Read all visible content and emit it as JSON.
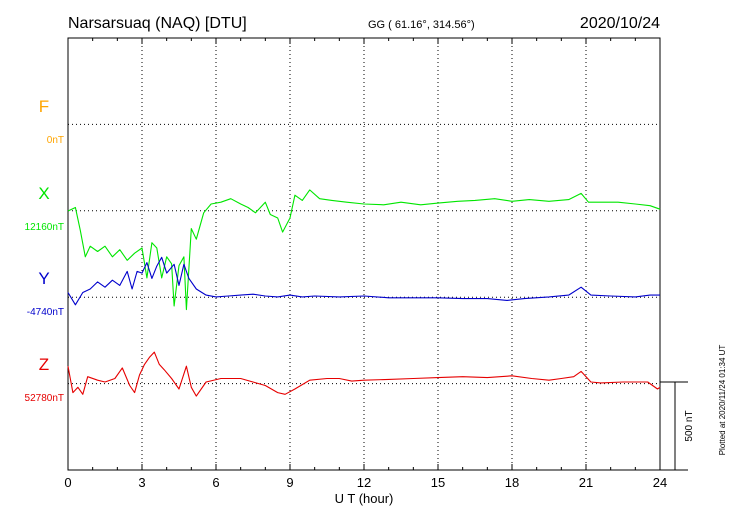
{
  "header": {
    "station": "Narsarsuaq (NAQ)  [DTU]",
    "coords": "GG ( 61.16°, 314.56°)",
    "date": "2020/10/24"
  },
  "side_note": "Plotted at 2020/11/24 01:34 UT",
  "scale_label": "500 nT",
  "colors": {
    "F": "#ffa500",
    "X": "#00e600",
    "Y": "#0000cc",
    "Z": "#e60000",
    "grid": "#000000"
  },
  "chart_data": {
    "type": "line",
    "xlabel": "U T (hour)",
    "xlim": [
      0,
      24
    ],
    "x_ticks": [
      "0",
      "3",
      "6",
      "9",
      "12",
      "15",
      "18",
      "21",
      "24"
    ],
    "panels": [
      {
        "key": "F",
        "name": "F",
        "baseline_label": "0nT",
        "baseline": 0,
        "unit": "nT",
        "values": []
      },
      {
        "key": "X",
        "name": "X",
        "baseline_label": "12160nT",
        "baseline": 12160,
        "unit": "nT",
        "points": [
          [
            0,
            12160
          ],
          [
            0.3,
            12180
          ],
          [
            0.5,
            12050
          ],
          [
            0.7,
            11900
          ],
          [
            0.9,
            11960
          ],
          [
            1.2,
            11930
          ],
          [
            1.5,
            11960
          ],
          [
            1.8,
            11900
          ],
          [
            2.1,
            11940
          ],
          [
            2.4,
            11880
          ],
          [
            2.7,
            11920
          ],
          [
            3.0,
            11950
          ],
          [
            3.2,
            11780
          ],
          [
            3.4,
            11980
          ],
          [
            3.6,
            11950
          ],
          [
            3.8,
            11780
          ],
          [
            4.0,
            11900
          ],
          [
            4.2,
            11860
          ],
          [
            4.3,
            11620
          ],
          [
            4.5,
            11850
          ],
          [
            4.7,
            11900
          ],
          [
            4.8,
            11600
          ],
          [
            5.0,
            12060
          ],
          [
            5.2,
            12000
          ],
          [
            5.5,
            12150
          ],
          [
            5.8,
            12200
          ],
          [
            6.2,
            12210
          ],
          [
            6.6,
            12230
          ],
          [
            7.0,
            12200
          ],
          [
            7.3,
            12180
          ],
          [
            7.6,
            12150
          ],
          [
            8.0,
            12210
          ],
          [
            8.2,
            12140
          ],
          [
            8.5,
            12120
          ],
          [
            8.7,
            12040
          ],
          [
            9.0,
            12120
          ],
          [
            9.2,
            12250
          ],
          [
            9.5,
            12220
          ],
          [
            9.8,
            12280
          ],
          [
            10.2,
            12230
          ],
          [
            10.7,
            12220
          ],
          [
            11.3,
            12210
          ],
          [
            12.0,
            12200
          ],
          [
            12.8,
            12195
          ],
          [
            13.5,
            12210
          ],
          [
            14.3,
            12195
          ],
          [
            15.0,
            12205
          ],
          [
            15.8,
            12215
          ],
          [
            16.5,
            12220
          ],
          [
            17.3,
            12230
          ],
          [
            18.0,
            12215
          ],
          [
            18.7,
            12225
          ],
          [
            19.5,
            12215
          ],
          [
            20.3,
            12225
          ],
          [
            20.8,
            12260
          ],
          [
            21.1,
            12210
          ],
          [
            21.5,
            12210
          ],
          [
            22.3,
            12210
          ],
          [
            23.0,
            12200
          ],
          [
            23.6,
            12190
          ],
          [
            24.0,
            12170
          ]
        ]
      },
      {
        "key": "Y",
        "name": "Y",
        "baseline_label": "-4740nT",
        "baseline": -4740,
        "unit": "nT",
        "points": [
          [
            0,
            -4720
          ],
          [
            0.3,
            -4790
          ],
          [
            0.6,
            -4720
          ],
          [
            0.9,
            -4700
          ],
          [
            1.2,
            -4660
          ],
          [
            1.5,
            -4690
          ],
          [
            1.8,
            -4650
          ],
          [
            2.1,
            -4680
          ],
          [
            2.4,
            -4600
          ],
          [
            2.6,
            -4700
          ],
          [
            2.8,
            -4600
          ],
          [
            3.0,
            -4610
          ],
          [
            3.2,
            -4550
          ],
          [
            3.4,
            -4640
          ],
          [
            3.6,
            -4570
          ],
          [
            3.8,
            -4520
          ],
          [
            4.0,
            -4610
          ],
          [
            4.3,
            -4560
          ],
          [
            4.5,
            -4680
          ],
          [
            4.7,
            -4560
          ],
          [
            4.9,
            -4640
          ],
          [
            5.2,
            -4700
          ],
          [
            5.6,
            -4735
          ],
          [
            6.0,
            -4745
          ],
          [
            6.5,
            -4740
          ],
          [
            7.0,
            -4735
          ],
          [
            7.5,
            -4730
          ],
          [
            8.0,
            -4740
          ],
          [
            8.5,
            -4745
          ],
          [
            9.0,
            -4735
          ],
          [
            9.5,
            -4745
          ],
          [
            10.0,
            -4740
          ],
          [
            11.0,
            -4745
          ],
          [
            12.0,
            -4740
          ],
          [
            13.0,
            -4750
          ],
          [
            14.0,
            -4750
          ],
          [
            15.0,
            -4750
          ],
          [
            16.0,
            -4755
          ],
          [
            17.0,
            -4755
          ],
          [
            17.8,
            -4765
          ],
          [
            18.5,
            -4755
          ],
          [
            19.5,
            -4745
          ],
          [
            20.3,
            -4735
          ],
          [
            20.8,
            -4690
          ],
          [
            21.2,
            -4735
          ],
          [
            22.0,
            -4740
          ],
          [
            23.0,
            -4745
          ],
          [
            23.6,
            -4735
          ],
          [
            24.0,
            -4735
          ]
        ]
      },
      {
        "key": "Z",
        "name": "Z",
        "baseline_label": "52780nT",
        "baseline": 52780,
        "unit": "nT",
        "points": [
          [
            0,
            52870
          ],
          [
            0.2,
            52720
          ],
          [
            0.4,
            52750
          ],
          [
            0.6,
            52710
          ],
          [
            0.8,
            52810
          ],
          [
            1.2,
            52790
          ],
          [
            1.5,
            52780
          ],
          [
            1.9,
            52800
          ],
          [
            2.2,
            52860
          ],
          [
            2.5,
            52760
          ],
          [
            2.7,
            52720
          ],
          [
            2.9,
            52820
          ],
          [
            3.1,
            52880
          ],
          [
            3.3,
            52920
          ],
          [
            3.5,
            52950
          ],
          [
            3.7,
            52880
          ],
          [
            3.9,
            52850
          ],
          [
            4.2,
            52800
          ],
          [
            4.5,
            52740
          ],
          [
            4.8,
            52870
          ],
          [
            5.0,
            52750
          ],
          [
            5.2,
            52700
          ],
          [
            5.6,
            52780
          ],
          [
            6.2,
            52800
          ],
          [
            7.0,
            52800
          ],
          [
            7.5,
            52780
          ],
          [
            8.0,
            52760
          ],
          [
            8.5,
            52720
          ],
          [
            8.8,
            52710
          ],
          [
            9.2,
            52740
          ],
          [
            9.8,
            52790
          ],
          [
            10.5,
            52800
          ],
          [
            11.0,
            52800
          ],
          [
            11.5,
            52785
          ],
          [
            12.0,
            52790
          ],
          [
            13.0,
            52795
          ],
          [
            14.0,
            52800
          ],
          [
            15.0,
            52805
          ],
          [
            16.0,
            52810
          ],
          [
            17.0,
            52805
          ],
          [
            18.0,
            52815
          ],
          [
            18.8,
            52800
          ],
          [
            19.5,
            52790
          ],
          [
            20.0,
            52800
          ],
          [
            20.5,
            52810
          ],
          [
            20.8,
            52840
          ],
          [
            21.2,
            52780
          ],
          [
            21.6,
            52775
          ],
          [
            22.5,
            52780
          ],
          [
            23.5,
            52780
          ],
          [
            23.9,
            52740
          ],
          [
            24.0,
            52750
          ]
        ]
      }
    ],
    "grid": true,
    "scale_bar_nT": 500
  }
}
